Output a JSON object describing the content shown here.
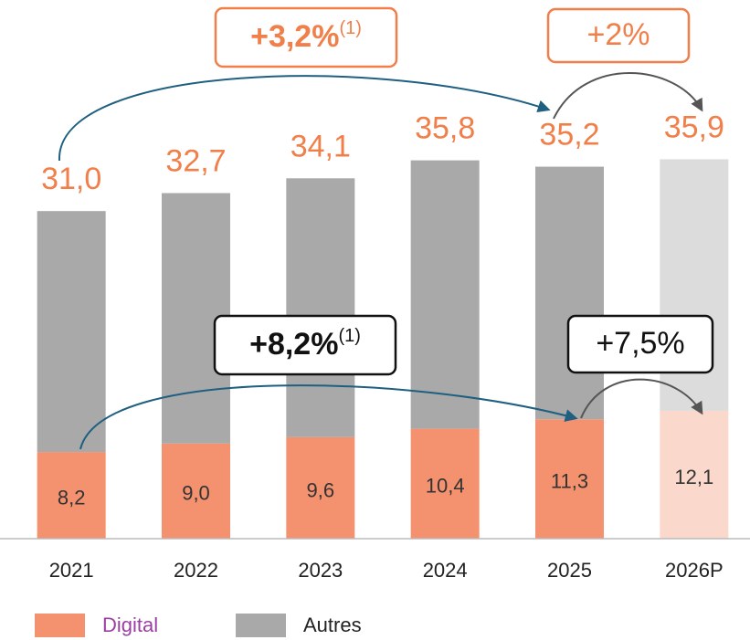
{
  "chart_data": {
    "type": "stacked_bar",
    "categories": [
      "2021",
      "2022",
      "2023",
      "2024",
      "2025",
      "2026P"
    ],
    "series": [
      {
        "name": "Digital",
        "color": "#f4916f",
        "colors": [
          "#f4916f",
          "#f4916f",
          "#f4916f",
          "#f4916f",
          "#f4916f",
          "#fbd8cc"
        ],
        "values": [
          8.2,
          9.0,
          9.6,
          10.4,
          11.3,
          12.1
        ],
        "value_labels": [
          "8,2",
          "9,0",
          "9,6",
          "10,4",
          "11,3",
          "12,1"
        ]
      },
      {
        "name": "Autres",
        "color": "#a9a9a9",
        "colors": [
          "#a9a9a9",
          "#a9a9a9",
          "#a9a9a9",
          "#a9a9a9",
          "#a9a9a9",
          "#dcdcdc"
        ],
        "values": [
          22.8,
          23.7,
          24.5,
          25.4,
          23.9,
          23.8
        ]
      }
    ],
    "totals": [
      31.0,
      32.7,
      34.1,
      35.8,
      35.2,
      35.9
    ],
    "total_labels": [
      "31,0",
      "32,7",
      "34,1",
      "35,8",
      "35,2",
      "35,9"
    ],
    "ylim": [
      0,
      40
    ],
    "annotations": [
      {
        "text": "+3,2%",
        "note": "(1)"
      },
      {
        "text": "+2%"
      },
      {
        "text": "+8,2%",
        "note": "(1)"
      },
      {
        "text": "+7,5%"
      }
    ]
  }
}
